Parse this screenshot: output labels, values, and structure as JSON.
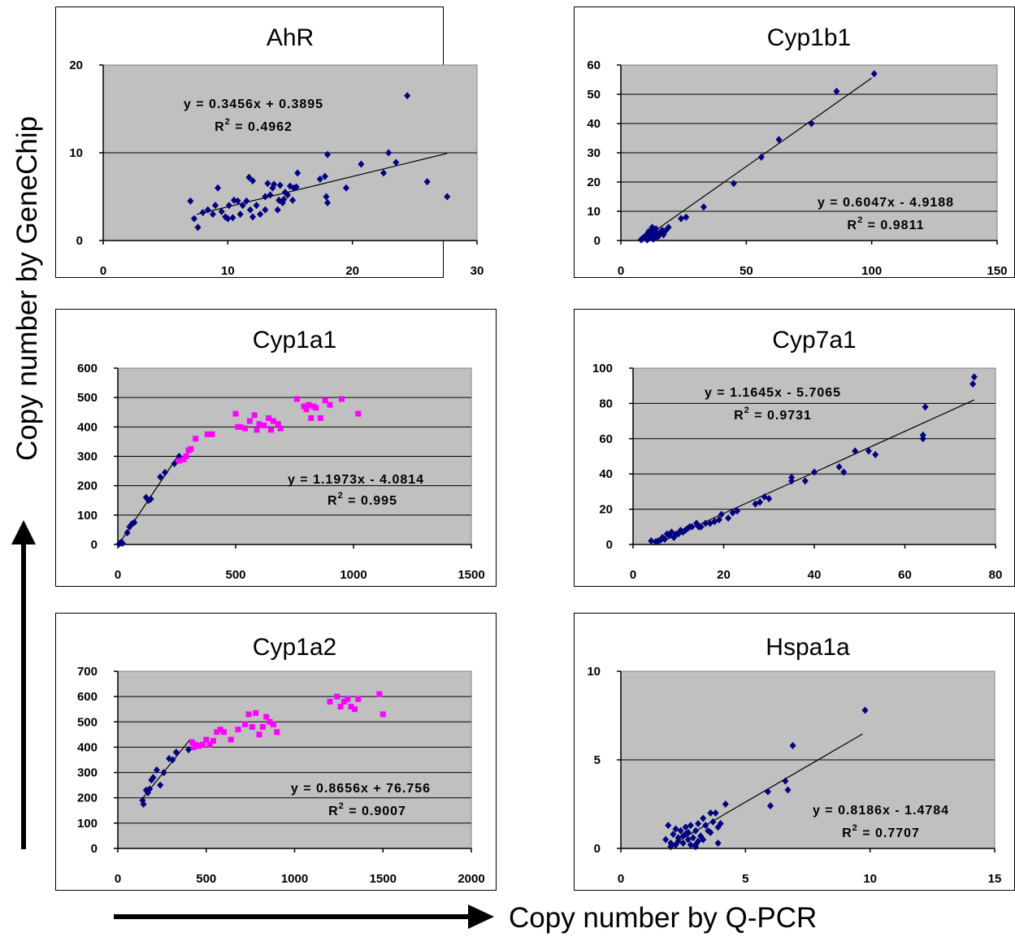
{
  "figure": {
    "ylabel": "Copy number by GeneChip",
    "xlabel": "Copy number by Q-PCR",
    "colors": {
      "plot_bg": "#c0c0c0",
      "series_navy": "#000080",
      "series_magenta": "#ff00ff",
      "grid": "#000000",
      "fit": "#000000"
    }
  },
  "chart_data": [
    {
      "type": "scatter",
      "title": "AhR",
      "xlim": [
        0,
        30
      ],
      "ylim": [
        0,
        20
      ],
      "xticks": [
        0,
        10,
        20,
        30
      ],
      "yticks": [
        0,
        10,
        20
      ],
      "grid": "horizontal",
      "equation": "y = 0.3456x + 0.3895",
      "r2": "0.4962",
      "fit": {
        "slope": 0.3456,
        "intercept": 0.3895,
        "x_range": [
          7.5,
          27.6
        ]
      },
      "series": [
        {
          "marker": "diamond",
          "color": "#000080",
          "x": [
            7,
            7.3,
            7.6,
            8,
            8.4,
            8.8,
            9,
            9.2,
            9.5,
            9.8,
            10,
            10.1,
            10.4,
            10.5,
            10.8,
            11,
            11.2,
            11.5,
            11.7,
            11.8,
            12,
            12,
            12.3,
            12.6,
            13,
            13,
            13.2,
            13.4,
            13.6,
            13.7,
            14,
            14.1,
            14.2,
            14.4,
            14.5,
            14.6,
            14.8,
            15,
            15.2,
            15.3,
            15.5,
            15.6,
            17.4,
            17.8,
            17.9,
            18,
            18,
            19.5,
            20.7,
            22.5,
            22.9,
            23.5,
            24.4,
            26,
            27.6
          ],
          "y": [
            4.5,
            2.5,
            1.5,
            3.2,
            3.5,
            3.0,
            4.0,
            6.0,
            3.3,
            2.7,
            2.5,
            4.0,
            2.6,
            4.6,
            4.5,
            3.0,
            4.0,
            4.5,
            7.2,
            3.5,
            2.7,
            6.8,
            4.0,
            3.0,
            5.0,
            3.5,
            6.5,
            5.2,
            6.0,
            6.4,
            3.5,
            4.6,
            6.3,
            4.3,
            4.7,
            5.5,
            5.2,
            6.2,
            4.6,
            6.0,
            6.1,
            7.7,
            7.0,
            7.3,
            5.0,
            4.3,
            9.8,
            6.0,
            8.7,
            7.7,
            10.0,
            8.9,
            16.5,
            6.7,
            5.0
          ]
        }
      ]
    },
    {
      "type": "scatter",
      "title": "Cyp1b1",
      "xlim": [
        0,
        150
      ],
      "ylim": [
        0,
        60
      ],
      "xticks": [
        0,
        50,
        100,
        150
      ],
      "yticks": [
        0,
        10,
        20,
        30,
        40,
        50,
        60
      ],
      "grid": "horizontal",
      "equation": "y = 0.6047x - 4.9188",
      "r2": "0.9811",
      "fit": {
        "slope": 0.6047,
        "intercept": -4.9188,
        "x_range": [
          8.2,
          100
        ]
      },
      "series": [
        {
          "marker": "diamond",
          "color": "#000080",
          "x": [
            8,
            8.5,
            9,
            9.5,
            10,
            10.5,
            11,
            11,
            11.5,
            12,
            12,
            12.5,
            13,
            13,
            13.5,
            14,
            14,
            14.5,
            15,
            15.5,
            16,
            16.5,
            17,
            18,
            19,
            24,
            26,
            33,
            45,
            56,
            63,
            76,
            86,
            101
          ],
          "y": [
            0.3,
            0.5,
            1,
            1.2,
            1.8,
            0.2,
            0.8,
            3,
            2,
            1,
            3.5,
            4.5,
            0.5,
            2.5,
            3,
            1,
            4,
            2.5,
            1.5,
            2,
            3,
            3.5,
            2,
            3.5,
            4.5,
            7.5,
            8,
            11.5,
            19.5,
            28.5,
            34.5,
            40,
            51,
            57
          ]
        }
      ]
    },
    {
      "type": "scatter",
      "title": "Cyp1a1",
      "xlim": [
        0,
        1500
      ],
      "ylim": [
        0,
        600
      ],
      "xticks": [
        0,
        500,
        1000,
        1500
      ],
      "yticks": [
        0,
        100,
        200,
        300,
        400,
        500,
        600
      ],
      "grid": "horizontal",
      "equation": "y = 1.1973x - 4.0814",
      "r2": "0.995",
      "fit": {
        "slope": 1.1973,
        "intercept": -4.0814,
        "x_range": [
          5,
          258
        ]
      },
      "series": [
        {
          "marker": "diamond",
          "color": "#000080",
          "x": [
            5,
            10,
            15,
            20,
            40,
            50,
            60,
            70,
            120,
            130,
            140,
            180,
            200,
            240,
            260
          ],
          "y": [
            2,
            5,
            8,
            4,
            40,
            60,
            70,
            75,
            160,
            150,
            155,
            230,
            245,
            275,
            300
          ]
        },
        {
          "marker": "square",
          "color": "#ff00ff",
          "x": [
            260,
            280,
            290,
            300,
            310,
            330,
            380,
            400,
            500,
            510,
            520,
            540,
            560,
            580,
            590,
            600,
            620,
            640,
            650,
            660,
            680,
            690,
            760,
            790,
            800,
            810,
            820,
            830,
            840,
            860,
            880,
            900,
            950,
            1020
          ],
          "y": [
            285,
            290,
            300,
            320,
            325,
            360,
            375,
            375,
            445,
            400,
            400,
            395,
            420,
            440,
            390,
            410,
            405,
            430,
            390,
            420,
            410,
            395,
            495,
            470,
            460,
            475,
            430,
            470,
            465,
            430,
            490,
            475,
            495,
            445
          ]
        }
      ]
    },
    {
      "type": "scatter",
      "title": "Cyp7a1",
      "xlim": [
        0,
        80
      ],
      "ylim": [
        0,
        100
      ],
      "xticks": [
        0,
        20,
        40,
        60,
        80
      ],
      "yticks": [
        0,
        20,
        40,
        60,
        80,
        100
      ],
      "grid": "horizontal",
      "equation": "y = 1.1645x - 5.7065",
      "r2": "0.9731",
      "fit": {
        "slope": 1.1645,
        "intercept": -5.7065,
        "x_range": [
          5,
          75.3
        ]
      },
      "series": [
        {
          "marker": "diamond",
          "color": "#000080",
          "x": [
            4,
            5,
            5.5,
            6,
            6.5,
            7,
            7.5,
            8,
            8.5,
            9,
            9.5,
            10,
            10.5,
            11,
            11.5,
            12,
            12.5,
            13,
            14,
            14.5,
            15,
            16,
            17,
            18,
            19,
            19.5,
            21,
            22,
            23,
            27,
            28,
            29,
            30,
            35,
            35,
            38,
            40,
            45.5,
            46.5,
            49,
            52,
            53.5,
            64,
            64,
            64.5,
            75,
            75.3
          ],
          "y": [
            2,
            1.5,
            2,
            2.5,
            4,
            3,
            6,
            5,
            7,
            4,
            6,
            6,
            8,
            7,
            8,
            9,
            10,
            10,
            12,
            10,
            10,
            12,
            12,
            13,
            14,
            17,
            15,
            18,
            19,
            23,
            24,
            27,
            26,
            36,
            38,
            36,
            41,
            44,
            41,
            53,
            53,
            51,
            62,
            60,
            78,
            91,
            95
          ]
        }
      ]
    },
    {
      "type": "scatter",
      "title": "Cyp1a2",
      "xlim": [
        0,
        2000
      ],
      "ylim": [
        0,
        700
      ],
      "xticks": [
        0,
        500,
        1000,
        1500,
        2000
      ],
      "yticks": [
        0,
        100,
        200,
        300,
        400,
        500,
        600,
        700
      ],
      "grid": "horizontal",
      "equation": "y = 0.8656x + 76.756",
      "r2": "0.9007",
      "fit": {
        "slope": 0.8656,
        "intercept": 76.756,
        "x_range": [
          140,
          410
        ]
      },
      "series": [
        {
          "marker": "diamond",
          "color": "#000080",
          "x": [
            140,
            145,
            160,
            170,
            180,
            190,
            200,
            220,
            240,
            260,
            290,
            310,
            330,
            400
          ],
          "y": [
            190,
            175,
            230,
            220,
            235,
            270,
            280,
            310,
            250,
            300,
            355,
            350,
            380,
            390
          ]
        },
        {
          "marker": "square",
          "color": "#ff00ff",
          "x": [
            420,
            430,
            440,
            460,
            480,
            500,
            520,
            540,
            560,
            580,
            600,
            640,
            680,
            720,
            740,
            760,
            780,
            800,
            820,
            840,
            860,
            880,
            900,
            1200,
            1240,
            1260,
            1280,
            1300,
            1320,
            1340,
            1360,
            1480,
            1500
          ],
          "y": [
            420,
            400,
            410,
            405,
            410,
            430,
            410,
            425,
            460,
            470,
            460,
            430,
            470,
            490,
            530,
            480,
            535,
            450,
            480,
            520,
            500,
            490,
            460,
            580,
            600,
            560,
            580,
            590,
            560,
            550,
            590,
            610,
            530
          ]
        }
      ]
    },
    {
      "type": "scatter",
      "title": "Hspa1a",
      "xlim": [
        0,
        15
      ],
      "ylim": [
        0,
        10
      ],
      "xticks": [
        0,
        5,
        10,
        15
      ],
      "yticks": [
        0,
        5,
        10
      ],
      "grid": "horizontal",
      "equation": "y = 0.8186x - 1.4784",
      "r2": "0.7707",
      "fit": {
        "slope": 0.8186,
        "intercept": -1.4784,
        "x_range": [
          2,
          9.7
        ]
      },
      "series": [
        {
          "marker": "diamond",
          "color": "#000080",
          "x": [
            1.8,
            1.9,
            2.0,
            2.1,
            2.2,
            2.2,
            2.3,
            2.4,
            2.5,
            2.5,
            2.6,
            2.7,
            2.7,
            2.8,
            2.8,
            2.9,
            3.0,
            3.0,
            3.1,
            3.1,
            3.2,
            3.3,
            3.4,
            3.5,
            3.6,
            3.7,
            3.8,
            3.9,
            4.0,
            4.2,
            2.0,
            2.3,
            2.6,
            3.0,
            3.3,
            3.6,
            3.9,
            5.9,
            6.0,
            6.6,
            6.7,
            6.9,
            9.8
          ],
          "y": [
            0.5,
            1.3,
            0.3,
            0.8,
            0.2,
            1.1,
            0.6,
            1.0,
            0.3,
            0.7,
            1.2,
            0.5,
            0.9,
            0.2,
            1.3,
            0.6,
            0.1,
            1.0,
            0.4,
            1.4,
            0.7,
            1.7,
            1.3,
            1.0,
            2.0,
            1.5,
            2.0,
            1.2,
            1.4,
            2.5,
            0.1,
            0.4,
            0.8,
            0.2,
            0.5,
            0.9,
            0.3,
            3.2,
            2.4,
            3.8,
            3.3,
            5.8,
            7.8
          ]
        }
      ]
    }
  ]
}
